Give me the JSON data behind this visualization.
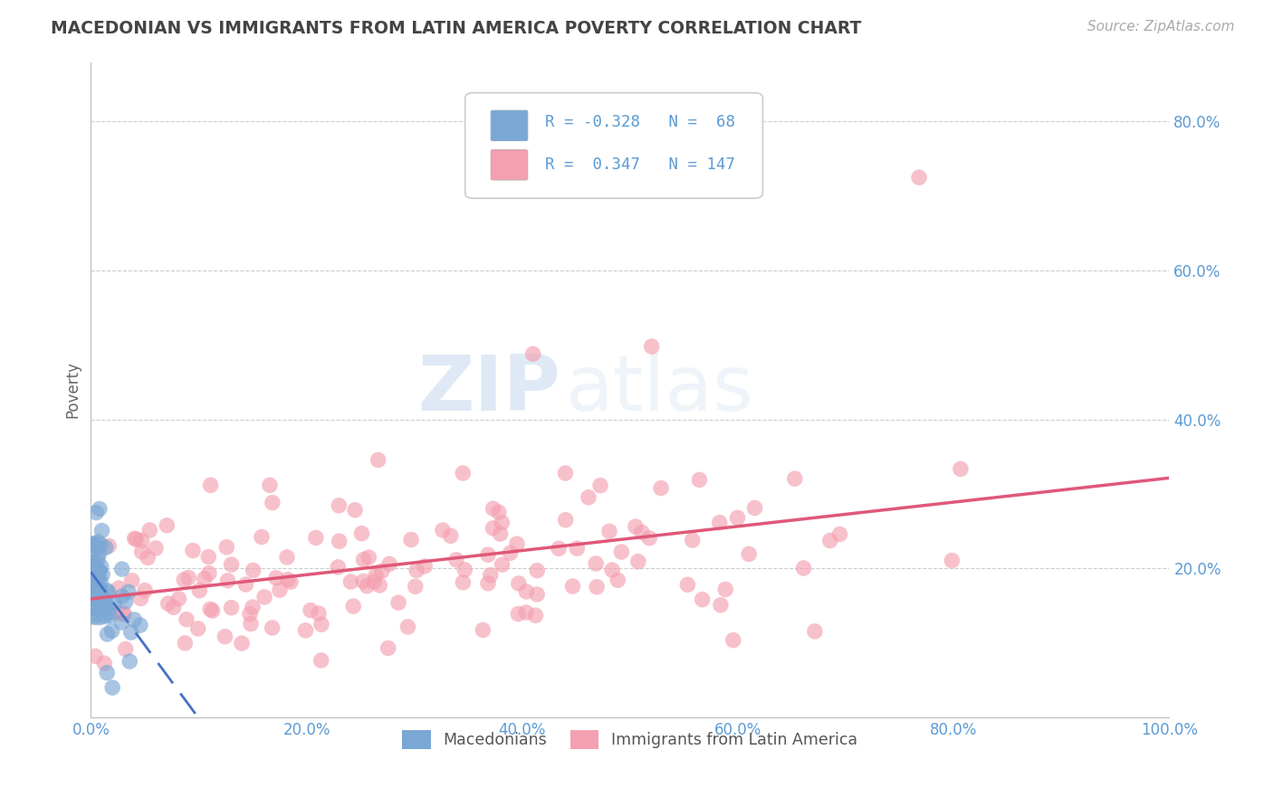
{
  "title": "MACEDONIAN VS IMMIGRANTS FROM LATIN AMERICA POVERTY CORRELATION CHART",
  "source": "Source: ZipAtlas.com",
  "ylabel": "Poverty",
  "xlim": [
    0,
    1
  ],
  "ylim": [
    0,
    0.88
  ],
  "xticks": [
    0.0,
    0.2,
    0.4,
    0.6,
    0.8,
    1.0
  ],
  "xtick_labels": [
    "0.0%",
    "20.0%",
    "40.0%",
    "60.0%",
    "80.0%",
    "100.0%"
  ],
  "yticks": [
    0.2,
    0.4,
    0.6,
    0.8
  ],
  "ytick_labels": [
    "20.0%",
    "40.0%",
    "60.0%",
    "80.0%"
  ],
  "macedonian_color": "#7BA7D4",
  "latin_color": "#F4A0B0",
  "macedonian_line_color": "#4472C4",
  "latin_line_color": "#E05878",
  "macedonian_R": -0.328,
  "macedonian_N": 68,
  "latin_R": 0.347,
  "latin_N": 147,
  "watermark_zip": "ZIP",
  "watermark_atlas": "atlas",
  "legend_entries": [
    "Macedonians",
    "Immigrants from Latin America"
  ],
  "background_color": "#ffffff",
  "grid_color": "#cccccc",
  "title_color": "#444444",
  "tick_color": "#5B9BD5",
  "legend_R_color": "#5B9BD5",
  "legend_box_color": "#dddddd"
}
